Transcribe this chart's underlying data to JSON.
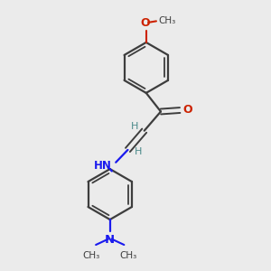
{
  "bg_color": "#ebebeb",
  "bond_color": "#3d3d3d",
  "o_color": "#cc2200",
  "n_color": "#1a1aee",
  "h_color": "#4a8a8a",
  "text_color": "#000000",
  "figsize": [
    3.0,
    3.0
  ],
  "dpi": 100,
  "xlim": [
    0,
    10
  ],
  "ylim": [
    0,
    10
  ]
}
